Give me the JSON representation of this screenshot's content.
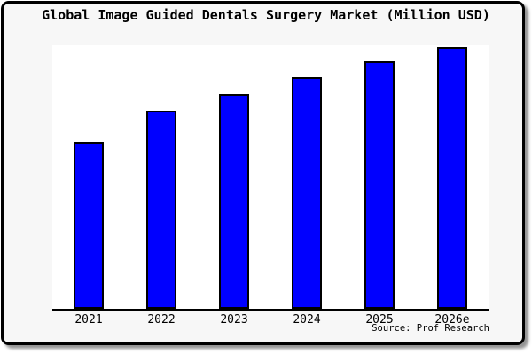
{
  "frame": {
    "background_color": "#f7f7f7",
    "border_color": "#000000",
    "plot_background_color": "#ffffff"
  },
  "chart": {
    "title": "Global Image Guided Dentals Surgery Market (Million USD)",
    "source_text": "Source: Prof Research"
  },
  "chart_data": {
    "type": "bar",
    "title": "Global Image Guided Dentals Surgery Market (Million USD)",
    "categories": [
      "2021",
      "2022",
      "2023",
      "2024",
      "2025",
      "2026e"
    ],
    "values_pct_of_tallest": [
      63,
      75.3,
      81.7,
      88,
      94,
      99.5
    ],
    "value_scale_note": "no y-axis ticks or data labels shown; bar heights estimated as percent of tallest bar",
    "xlabel": "",
    "ylabel": "",
    "gridlines": false,
    "legend": false,
    "y_axis_shown": false,
    "bar_color": "#0000ff",
    "bar_border_color": "#000000",
    "annotation": "Source: Prof Research"
  }
}
